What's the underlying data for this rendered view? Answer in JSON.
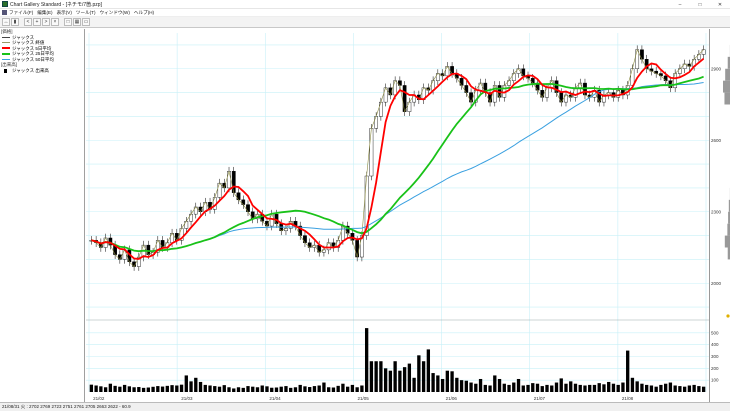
{
  "window": {
    "title": "Chart Gallery Standard - [ネチモ/7箇.pzp]",
    "minimize": "–",
    "maximize": "□",
    "close": "✕"
  },
  "menu": [
    "ファイル(F)",
    "編集(E)",
    "表示(V)",
    "ツール(T)",
    "ウィンドウ(W)",
    "ヘルプ(H)"
  ],
  "toolbar": {
    "buttons": [
      "↔",
      "▮",
      "<",
      "+",
      ">",
      "×",
      "□",
      "▦",
      "▭"
    ]
  },
  "left_panel": {
    "items": [
      {
        "label": "[価格]",
        "kind": "header",
        "color": ""
      },
      {
        "label": "ジャックス",
        "kind": "line",
        "color": "#444444"
      },
      {
        "label": "ジャックス 終値",
        "kind": "line",
        "color": "#999966"
      },
      {
        "label": "ジャックス 5日平均",
        "kind": "thick",
        "color": "#ff0000"
      },
      {
        "label": "ジャックス 25日平均",
        "kind": "thick",
        "color": "#19c219"
      },
      {
        "label": "ジャックス 50日平均",
        "kind": "line",
        "color": "#3aa0e0"
      },
      {
        "label": "[出来高]",
        "kind": "header",
        "color": ""
      },
      {
        "label": "ジャックス 出来高",
        "kind": "bar",
        "color": "#000000"
      }
    ]
  },
  "status_bar": {
    "text": "21/08/31 火 : 2702 2769 2723 2751 2761 2705 2663 2622 - 60.9"
  },
  "colors": {
    "ma5": "#ff0000",
    "ma25": "#19c219",
    "ma50": "#3aa0e0",
    "close": "#8a8a40",
    "grid": "#c8f0f8",
    "candle": "#000000"
  },
  "chart_data": {
    "type": "candlestick",
    "price_ylim": [
      1850,
      3050
    ],
    "price_ticks": [
      2000,
      2300,
      2600,
      2900
    ],
    "volume_ylim": [
      0,
      600
    ],
    "volume_ticks": [
      100,
      200,
      300,
      400,
      500
    ],
    "x_tick_labels": [
      "21/02",
      "21/03",
      "21/04",
      "21/05",
      "21/06",
      "21/07",
      "21/08"
    ],
    "grid": true,
    "close": [
      2180,
      2170,
      2150,
      2190,
      2160,
      2120,
      2100,
      2140,
      2090,
      2070,
      2110,
      2160,
      2120,
      2130,
      2180,
      2150,
      2170,
      2210,
      2180,
      2230,
      2260,
      2290,
      2320,
      2300,
      2340,
      2310,
      2360,
      2420,
      2400,
      2470,
      2380,
      2350,
      2330,
      2300,
      2270,
      2290,
      2260,
      2240,
      2290,
      2250,
      2220,
      2230,
      2260,
      2240,
      2200,
      2170,
      2150,
      2160,
      2130,
      2140,
      2170,
      2150,
      2180,
      2240,
      2210,
      2180,
      2110,
      2200,
      2450,
      2650,
      2700,
      2760,
      2820,
      2790,
      2850,
      2830,
      2720,
      2760,
      2790,
      2770,
      2820,
      2810,
      2850,
      2880,
      2870,
      2910,
      2880,
      2860,
      2830,
      2800,
      2760,
      2810,
      2840,
      2800,
      2760,
      2830,
      2780,
      2830,
      2850,
      2880,
      2900,
      2870,
      2860,
      2840,
      2810,
      2780,
      2820,
      2850,
      2800,
      2760,
      2790,
      2780,
      2820,
      2840,
      2790,
      2780,
      2810,
      2760,
      2790,
      2800,
      2780,
      2810,
      2790,
      2830,
      2900,
      2980,
      2940,
      2900,
      2890,
      2880,
      2870,
      2850,
      2820,
      2880,
      2900,
      2920,
      2910,
      2940,
      2960,
      2980
    ],
    "volume": [
      62,
      55,
      48,
      40,
      70,
      52,
      45,
      60,
      48,
      40,
      42,
      35,
      38,
      44,
      50,
      46,
      52,
      58,
      55,
      62,
      140,
      90,
      120,
      85,
      60,
      55,
      50,
      45,
      58,
      40,
      30,
      40,
      35,
      50,
      45,
      40,
      55,
      48,
      36,
      38,
      45,
      50,
      35,
      40,
      60,
      48,
      42,
      50,
      55,
      80,
      40,
      38,
      52,
      70,
      45,
      60,
      40,
      55,
      540,
      260,
      260,
      260,
      200,
      180,
      260,
      180,
      210,
      240,
      120,
      310,
      260,
      360,
      160,
      140,
      110,
      180,
      175,
      120,
      100,
      95,
      80,
      70,
      110,
      60,
      55,
      140,
      110,
      70,
      60,
      80,
      110,
      55,
      60,
      75,
      70,
      50,
      60,
      55,
      80,
      115,
      70,
      90,
      70,
      60,
      55,
      60,
      60,
      75,
      65,
      85,
      70,
      60,
      80,
      350,
      120,
      90,
      70,
      60,
      55,
      45,
      60,
      70,
      80,
      55,
      50,
      45,
      55,
      60,
      50,
      45
    ]
  }
}
